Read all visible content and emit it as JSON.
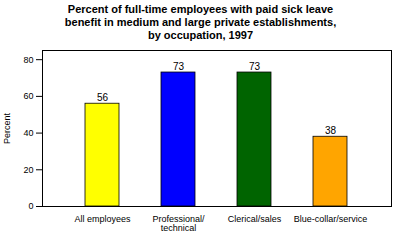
{
  "chart_data": {
    "type": "bar",
    "title": "Percent of full-time employees with paid sick leave\nbenefit in medium and large private establishments,\nby occupation, 1997",
    "categories": [
      "All employees",
      "Professional/\ntechnical",
      "Clerical/sales",
      "Blue-collar/service"
    ],
    "values": [
      56,
      73,
      73,
      38
    ],
    "colors": [
      "#ffff00",
      "#0000ff",
      "#006400",
      "#ffa500"
    ],
    "ylabel": "Percent",
    "ylim": [
      0,
      85
    ],
    "yticks": [
      0,
      20,
      40,
      60,
      80
    ],
    "data_labels": true,
    "grid": false
  }
}
